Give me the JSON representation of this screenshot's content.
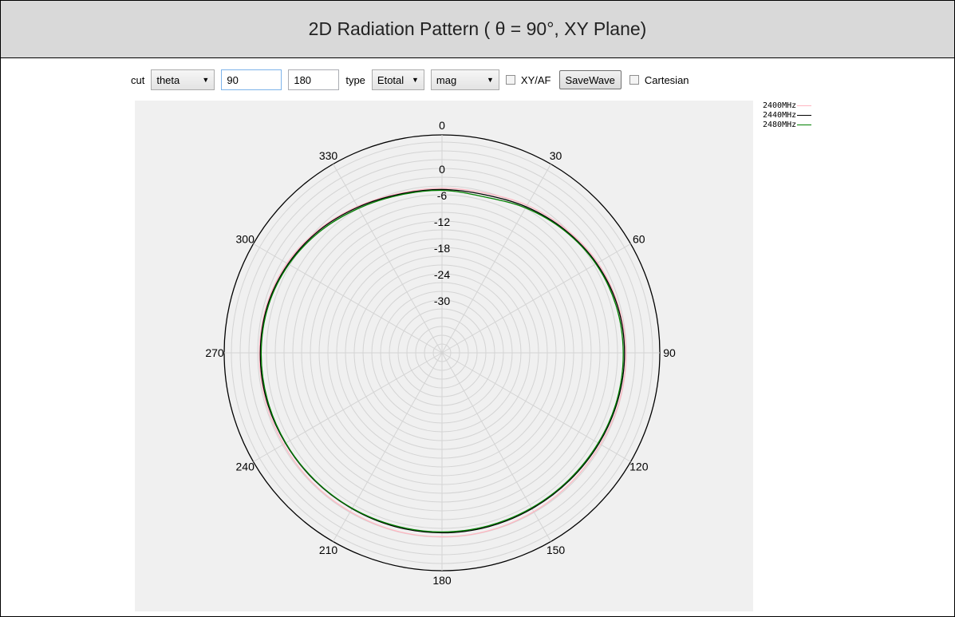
{
  "header": {
    "title": "2D Radiation Pattern ( θ = 90°, XY Plane)"
  },
  "toolbar": {
    "cut_label": "cut",
    "cut_select": "theta",
    "value1": "90",
    "value2": "180",
    "type_label": "type",
    "type_select": "Etotal",
    "mode_select": "mag",
    "xyaf_label": "XY/AF",
    "xyaf_checked": false,
    "savewave_label": "SaveWave",
    "cartesian_label": "Cartesian",
    "cartesian_checked": false
  },
  "chart_data": {
    "type": "polar",
    "angle_ticks": [
      "0",
      "30",
      "60",
      "90",
      "120",
      "150",
      "180",
      "210",
      "240",
      "270",
      "300",
      "330"
    ],
    "radial_ticks": [
      "0",
      "-6",
      "-12",
      "-18",
      "-24",
      "-30"
    ],
    "radial_range": [
      -42,
      6
    ],
    "radial_step": 2,
    "angle_step_grid": 30,
    "series": [
      {
        "name": "2400MHz",
        "color": "#ffb6c1",
        "angles": [
          0,
          15,
          30,
          45,
          60,
          75,
          90,
          105,
          120,
          135,
          150,
          165,
          180,
          195,
          210,
          225,
          240,
          255,
          270,
          285,
          300,
          315,
          330,
          345,
          360
        ],
        "values": [
          -4.5,
          -4.3,
          -3.2,
          -2.1,
          -1.0,
          -0.4,
          -0.1,
          -0.1,
          -0.3,
          -0.3,
          -0.2,
          -0.1,
          -0.1,
          -0.1,
          -0.2,
          -0.2,
          -0.3,
          -0.3,
          -0.4,
          -0.6,
          -1.2,
          -2.3,
          -3.5,
          -4.4,
          -4.5
        ]
      },
      {
        "name": "2440MHz",
        "color": "#000000",
        "angles": [
          0,
          15,
          30,
          45,
          60,
          75,
          90,
          105,
          120,
          135,
          150,
          165,
          180,
          195,
          210,
          225,
          240,
          255,
          270,
          285,
          300,
          315,
          330,
          345,
          360
        ],
        "values": [
          -4.8,
          -4.7,
          -3.6,
          -2.4,
          -1.3,
          -0.6,
          -0.4,
          -0.5,
          -0.7,
          -0.9,
          -1.0,
          -1.0,
          -1.0,
          -1.0,
          -1.0,
          -0.9,
          -0.8,
          -0.6,
          -0.6,
          -0.8,
          -1.5,
          -2.5,
          -3.7,
          -4.6,
          -4.8
        ]
      },
      {
        "name": "2480MHz",
        "color": "#008000",
        "angles": [
          0,
          15,
          30,
          45,
          60,
          75,
          90,
          105,
          120,
          135,
          150,
          165,
          180,
          195,
          210,
          225,
          240,
          255,
          270,
          285,
          300,
          315,
          330,
          345,
          360
        ],
        "values": [
          -5.0,
          -5.2,
          -3.9,
          -2.6,
          -1.5,
          -0.9,
          -0.7,
          -0.7,
          -0.9,
          -1.1,
          -1.2,
          -1.2,
          -1.2,
          -1.2,
          -1.1,
          -1.0,
          -0.9,
          -0.8,
          -0.8,
          -1.0,
          -1.7,
          -2.8,
          -4.0,
          -4.8,
          -5.0
        ]
      }
    ]
  }
}
